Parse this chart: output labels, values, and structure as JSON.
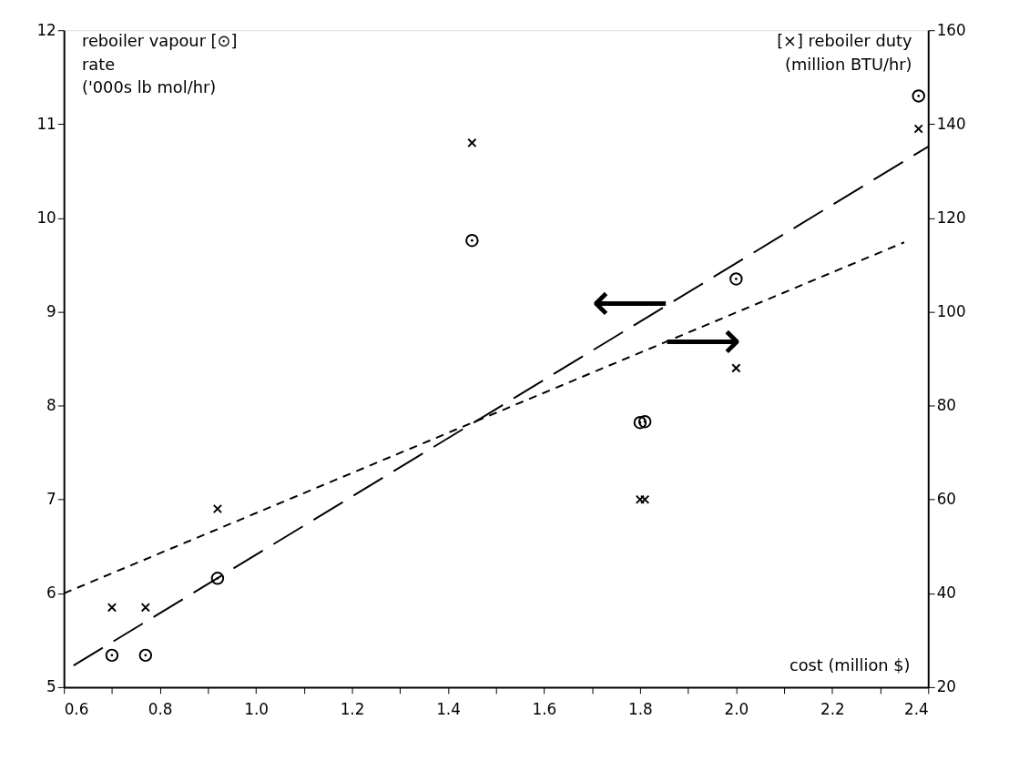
{
  "chart_data": {
    "type": "scatter",
    "xlabel": "cost (million $)",
    "ylabel": "reboiler vapour  [⊙]\nrate\n('000s lb mol/hr)",
    "y2label": "[×]   reboiler duty\n(million BTU/hr)",
    "xlim": [
      0.6,
      2.4
    ],
    "xticks": [
      0.6,
      {
        "value": 0.7,
        "label": null
      },
      0.8,
      {
        "value": 0.9,
        "label": null
      },
      {
        "value": 1.0,
        "label": "1.0"
      },
      {
        "value": 1.1,
        "label": null
      },
      1.2,
      {
        "value": 1.3,
        "label": null
      },
      1.4,
      {
        "value": 1.5,
        "label": null
      },
      1.6,
      {
        "value": 1.7,
        "label": null
      },
      1.8,
      {
        "value": 1.9,
        "label": null
      },
      {
        "value": 2.0,
        "label": "2.0"
      },
      {
        "value": 2.1,
        "label": null
      },
      2.2,
      {
        "value": 2.3,
        "label": null
      },
      2.4
    ],
    "ylim": [
      5,
      12
    ],
    "yticks": [
      5,
      6,
      7,
      8,
      9,
      10,
      11,
      12
    ],
    "y2lim": [
      20,
      160
    ],
    "y2ticks": [
      20,
      40,
      60,
      80,
      100,
      120,
      140,
      160
    ],
    "grid": false,
    "series": [
      {
        "marker": "circle",
        "color": "#000000",
        "x": [
          0.7,
          0.77,
          0.92,
          1.45,
          1.8,
          1.81,
          2.0,
          2.38
        ],
        "values": [
          5.34,
          5.34,
          6.16,
          9.76,
          7.82,
          7.83,
          9.35,
          11.3
        ]
      },
      {
        "marker": "cross",
        "color": "#000000",
        "axis": "y2",
        "x": [
          0.7,
          0.77,
          0.92,
          1.45,
          1.8,
          1.81,
          2.0,
          2.38
        ],
        "values": [
          37,
          37,
          58,
          136,
          60,
          60,
          88,
          139
        ]
      },
      {
        "type": "line",
        "line_style": "dashed",
        "color": "#000000",
        "x": [
          0.62,
          2.4
        ],
        "values": [
          5.23,
          10.76
        ]
      },
      {
        "type": "line",
        "line_style": "dashed",
        "color": "#000000",
        "axis": "y2",
        "x": [
          0.6,
          2.35
        ],
        "values": [
          40,
          114.8
        ]
      }
    ],
    "annotations": [
      {
        "text": "⟵",
        "x": 1.86,
        "y": 9.08
      },
      {
        "text": "⟶",
        "x": 1.85,
        "y": 8.67
      }
    ]
  }
}
